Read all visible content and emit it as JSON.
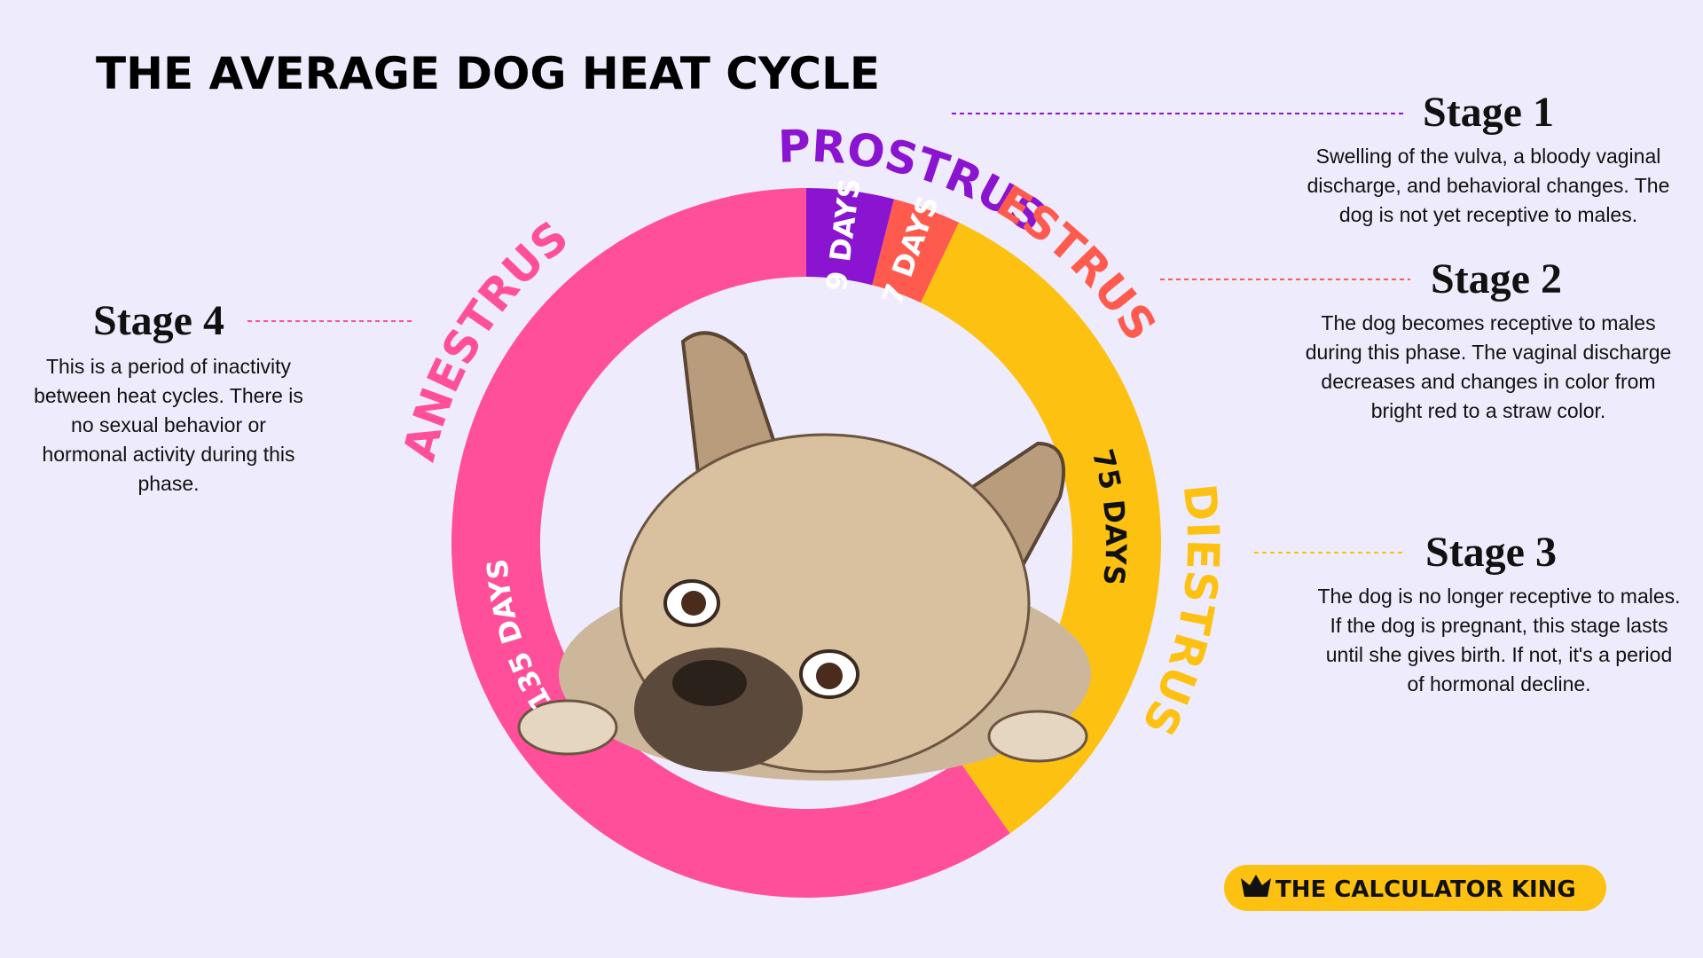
{
  "chart_data": {
    "type": "donut",
    "title": "THE AVERAGE DOG HEAT CYCLE",
    "categories": [
      "PROSTRUS",
      "ESTRUS",
      "DIESTRUS",
      "ANESTRUS"
    ],
    "values": [
      9,
      7,
      75,
      135
    ],
    "value_labels": [
      "9 DAYS",
      "7 DAYS",
      "75 DAYS",
      "135 DAYS"
    ],
    "colors": [
      "#8a14d0",
      "#ff5a4e",
      "#fdc112",
      "#ff4f9a"
    ]
  },
  "stages": [
    {
      "title": "Stage 1",
      "lines": [
        "Swelling of the vulva, a bloody vaginal",
        "discharge, and behavioral changes. The",
        "dog is not yet receptive to males."
      ]
    },
    {
      "title": "Stage 2",
      "lines": [
        "The dog becomes receptive to males",
        "during this phase. The vaginal discharge",
        "decreases and changes in color from",
        "bright red to a straw color."
      ]
    },
    {
      "title": "Stage 3",
      "lines": [
        "The dog is no longer receptive to males.",
        "If the dog is pregnant, this stage lasts",
        "until she gives birth. If not, it's a period",
        "of hormonal decline."
      ]
    },
    {
      "title": "Stage 4",
      "lines": [
        "This is a period of inactivity",
        "between heat cycles. There is",
        "no sexual behavior or",
        "hormonal activity during this",
        "phase."
      ]
    }
  ],
  "brand": {
    "name": "THE CALCULATOR KING"
  }
}
